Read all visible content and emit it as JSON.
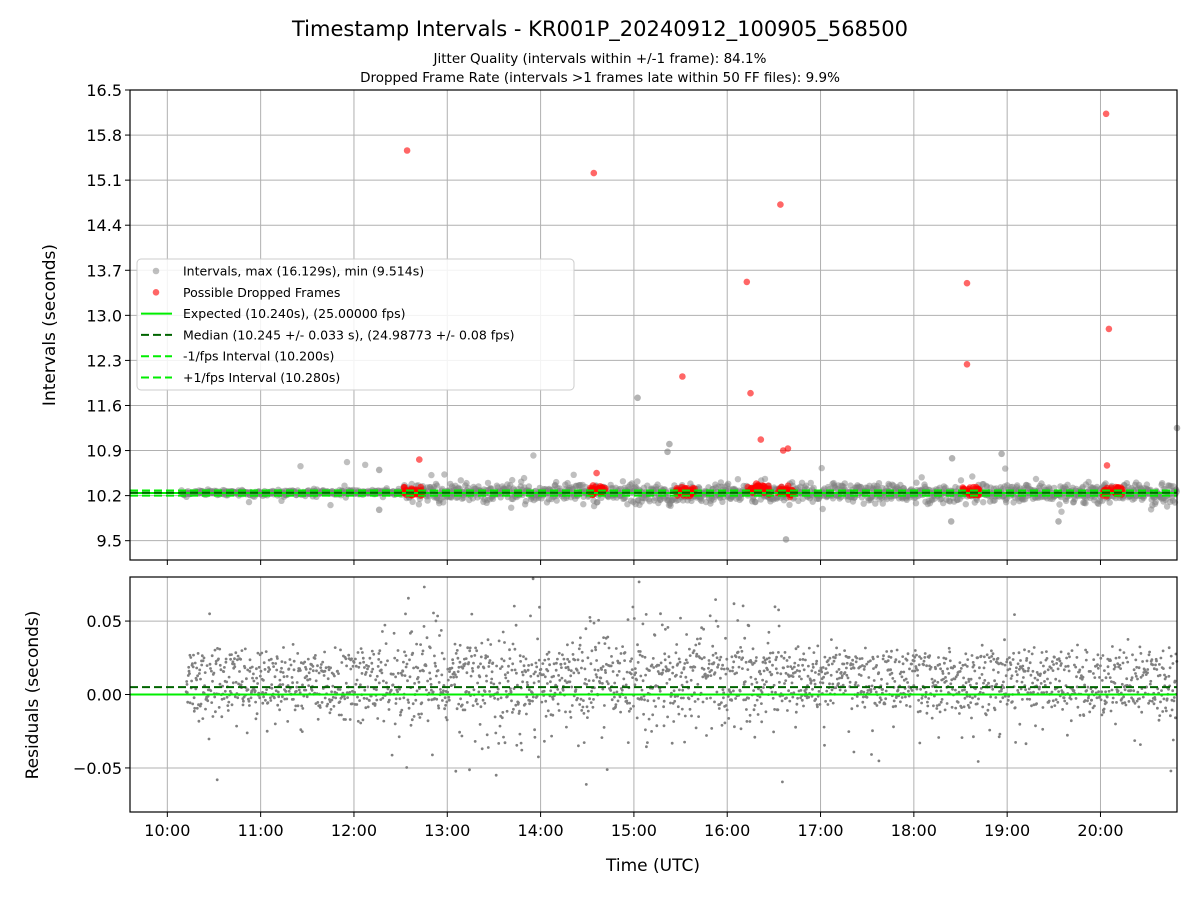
{
  "figure": {
    "title": "Timestamp Intervals - KR001P_20240912_100905_568500",
    "subtitle_1": "Jitter Quality (intervals within +/-1 frame): 84.1%",
    "subtitle_2": "Dropped Frame Rate (intervals >1 frames late within 50 FF files): 9.9%"
  },
  "chart_data": [
    {
      "type": "scatter",
      "panel": "top",
      "ylabel": "Intervals (seconds)",
      "xlabel": "",
      "x_unit": "hours UTC",
      "xlim": [
        9.6,
        20.82
      ],
      "ylim": [
        9.2,
        16.5
      ],
      "yticks": [
        9.5,
        10.2,
        10.9,
        11.6,
        12.3,
        13.0,
        13.7,
        14.4,
        15.1,
        15.8,
        16.5
      ],
      "ytick_labels": [
        "9.5",
        "10.2",
        "10.9",
        "11.6",
        "12.3",
        "13.0",
        "13.7",
        "14.4",
        "15.1",
        "15.8",
        "16.5"
      ],
      "grid": true,
      "legend_position": "center-left",
      "legend": [
        {
          "label": "Intervals, max (16.129s), min (9.514s)",
          "kind": "marker",
          "color": "#808080"
        },
        {
          "label": "Possible Dropped Frames",
          "kind": "marker",
          "color": "#ff0000"
        },
        {
          "label": "Expected (10.240s), (25.00000 fps)",
          "kind": "solid",
          "color": "#00ee00"
        },
        {
          "label": "Median (10.245 +/- 0.033 s), (24.98773 +/- 0.08 fps)",
          "kind": "dashed",
          "color": "#006400"
        },
        {
          "label": "-1/fps Interval (10.200s)",
          "kind": "dashed",
          "color": "#00ee00"
        },
        {
          "label": "+1/fps Interval (10.280s)",
          "kind": "dashed",
          "color": "#00ee00"
        }
      ],
      "reference_lines": {
        "expected": 10.24,
        "median": 10.245,
        "minus_one_frame": 10.2,
        "plus_one_frame": 10.28
      },
      "outlier_points": [
        {
          "x": 12.57,
          "y": 15.56,
          "dropped": true
        },
        {
          "x": 14.57,
          "y": 15.21,
          "dropped": true
        },
        {
          "x": 16.57,
          "y": 14.72,
          "dropped": true
        },
        {
          "x": 16.21,
          "y": 13.52,
          "dropped": true
        },
        {
          "x": 18.57,
          "y": 13.5,
          "dropped": true
        },
        {
          "x": 20.06,
          "y": 16.13,
          "dropped": true
        },
        {
          "x": 20.09,
          "y": 12.79,
          "dropped": true
        },
        {
          "x": 18.57,
          "y": 12.24,
          "dropped": true
        },
        {
          "x": 15.52,
          "y": 12.05,
          "dropped": true
        },
        {
          "x": 16.25,
          "y": 11.79,
          "dropped": true
        },
        {
          "x": 16.36,
          "y": 11.07,
          "dropped": true
        },
        {
          "x": 16.65,
          "y": 10.93,
          "dropped": true
        },
        {
          "x": 16.6,
          "y": 10.9,
          "dropped": true
        },
        {
          "x": 12.7,
          "y": 10.76,
          "dropped": true
        },
        {
          "x": 20.07,
          "y": 10.67,
          "dropped": true
        },
        {
          "x": 14.6,
          "y": 10.55,
          "dropped": true
        },
        {
          "x": 15.04,
          "y": 11.72,
          "dropped": false
        },
        {
          "x": 20.82,
          "y": 11.25,
          "dropped": false
        },
        {
          "x": 15.38,
          "y": 11.0,
          "dropped": false
        },
        {
          "x": 15.36,
          "y": 10.88,
          "dropped": false
        },
        {
          "x": 16.63,
          "y": 9.52,
          "dropped": false
        },
        {
          "x": 18.4,
          "y": 9.8,
          "dropped": false
        },
        {
          "x": 19.55,
          "y": 9.8,
          "dropped": false
        },
        {
          "x": 12.27,
          "y": 9.98,
          "dropped": false
        },
        {
          "x": 12.27,
          "y": 10.6,
          "dropped": false
        },
        {
          "x": 18.94,
          "y": 10.85,
          "dropped": false
        },
        {
          "x": 18.41,
          "y": 10.78,
          "dropped": false
        }
      ],
      "dropped_frame_clusters": [
        {
          "x_start": 12.53,
          "x_end": 12.73,
          "y_center": 10.26
        },
        {
          "x_start": 14.53,
          "x_end": 14.7,
          "y_center": 10.28
        },
        {
          "x_start": 15.45,
          "x_end": 15.65,
          "y_center": 10.27
        },
        {
          "x_start": 16.2,
          "x_end": 16.45,
          "y_center": 10.3
        },
        {
          "x_start": 16.53,
          "x_end": 16.72,
          "y_center": 10.27
        },
        {
          "x_start": 18.52,
          "x_end": 18.7,
          "y_center": 10.26
        },
        {
          "x_start": 20.02,
          "x_end": 20.24,
          "y_center": 10.27
        }
      ],
      "bulk_band": {
        "y_center": 10.245,
        "y_spread": 0.06
      }
    },
    {
      "type": "scatter",
      "panel": "bottom",
      "ylabel": "Residuals (seconds)",
      "xlabel": "Time (UTC)",
      "x_unit": "hours UTC",
      "xlim": [
        9.6,
        20.82
      ],
      "ylim": [
        -0.08,
        0.08
      ],
      "yticks": [
        0.05,
        0.0,
        -0.05
      ],
      "ytick_labels": [
        "0.05",
        "0.00",
        "−0.05"
      ],
      "xticks": [
        10,
        11,
        12,
        13,
        14,
        15,
        16,
        17,
        18,
        19,
        20
      ],
      "xtick_labels": [
        "10:00",
        "11:00",
        "12:00",
        "13:00",
        "14:00",
        "15:00",
        "16:00",
        "17:00",
        "18:00",
        "19:00",
        "20:00"
      ],
      "grid": true,
      "reference_lines": {
        "expected": 0.0,
        "median": 0.005
      },
      "residual_bands": {
        "low": 0.0,
        "high": 0.02,
        "spread": 0.006,
        "scatter_sd": 0.025
      }
    }
  ],
  "colors": {
    "interval_points": "#808080",
    "dropped_points": "#ff0000",
    "expected_line": "#00ee00",
    "median_line": "#006400",
    "fps_bounds": "#00ee00",
    "grid": "#b0b0b0"
  }
}
